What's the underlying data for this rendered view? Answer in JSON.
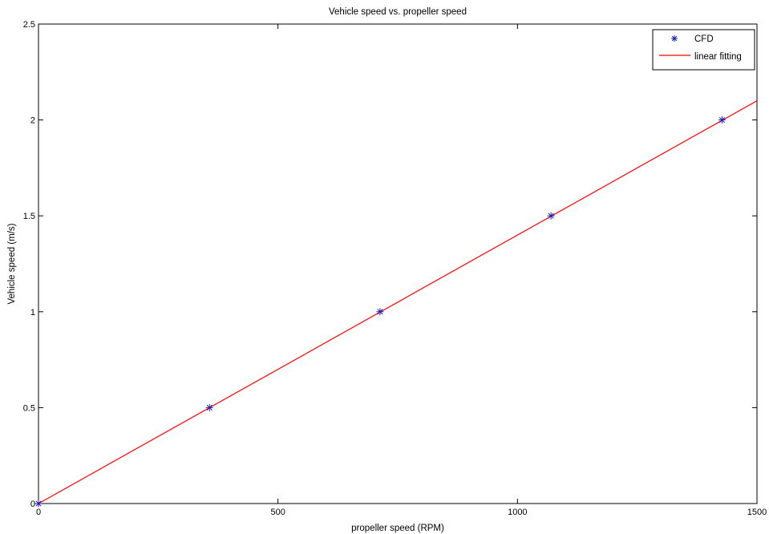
{
  "chart_data": {
    "type": "scatter",
    "title": "Vehicle speed vs. propeller speed",
    "xlabel": "propeller speed (RPM)",
    "ylabel": "Vehicle speed (m/s)",
    "xlim": [
      0,
      1500
    ],
    "ylim": [
      0,
      2.5
    ],
    "xticks": [
      0,
      500,
      1000,
      1500
    ],
    "xtick_labels": [
      "0",
      "500",
      "1000",
      "1500"
    ],
    "yticks": [
      0,
      0.5,
      1,
      1.5,
      2,
      2.5
    ],
    "ytick_labels": [
      "0",
      "0.5",
      "1",
      "1.5",
      "2",
      "2.5"
    ],
    "grid": false,
    "legend_position": "top-right",
    "series": [
      {
        "name": "CFD",
        "kind": "scatter",
        "marker": "asterisk",
        "color": "#1f1fb0",
        "x": [
          0,
          357,
          713,
          1070,
          1427
        ],
        "y": [
          0,
          0.5,
          1.0,
          1.5,
          2.0
        ]
      },
      {
        "name": "linear fitting",
        "kind": "line",
        "color": "#ff0000",
        "x": [
          0,
          1500
        ],
        "y": [
          0,
          2.1
        ]
      }
    ]
  }
}
